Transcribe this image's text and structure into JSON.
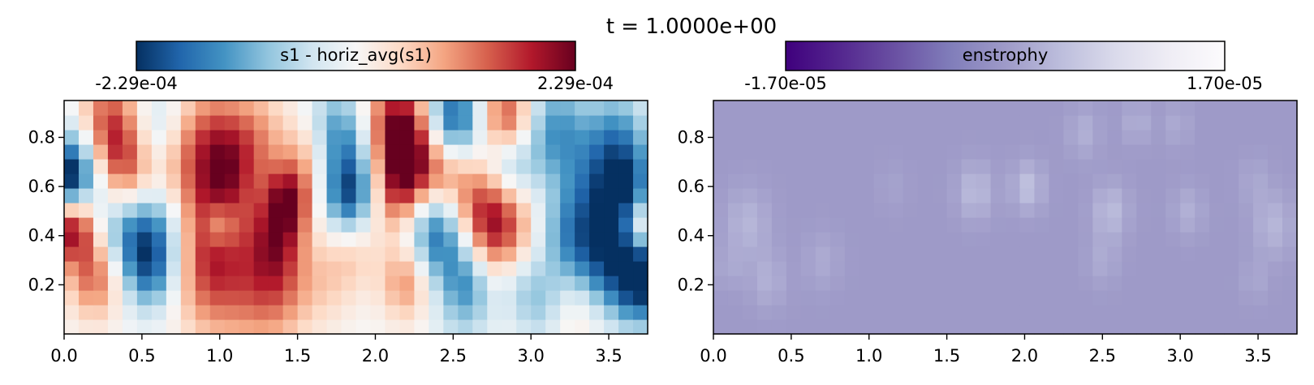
{
  "figure": {
    "suptitle": "t = 1.0000e+00"
  },
  "chart_data": [
    {
      "type": "heatmap",
      "title": "",
      "colorbar_label": "s1 - horiz_avg(s1)",
      "colormap": "RdBu_r",
      "colormap_stops": [
        "#053061",
        "#2166ac",
        "#4393c3",
        "#92c5de",
        "#d1e5f0",
        "#f7f7f7",
        "#fddbc7",
        "#f4a582",
        "#d6604d",
        "#b2182b",
        "#67001f"
      ],
      "vmin": -0.000229,
      "vmax": 0.000229,
      "colorbar_ticks": [
        "-2.29e-04",
        "2.29e-04"
      ],
      "xlim": [
        0,
        3.75
      ],
      "ylim": [
        0,
        0.95
      ],
      "xticks": [
        "0.0",
        "0.5",
        "1.0",
        "1.5",
        "2.0",
        "2.5",
        "3.0",
        "3.5"
      ],
      "yticks": [
        "0.2",
        "0.4",
        "0.6",
        "0.8"
      ],
      "grid": false,
      "nx": 40,
      "ny": 16,
      "blobs": [
        {
          "x": 0.28,
          "y": 0.84,
          "r": 0.14,
          "a": 0.75
        },
        {
          "x": 0.6,
          "y": 0.83,
          "r": 0.12,
          "a": -0.3
        },
        {
          "x": 0.95,
          "y": 0.82,
          "r": 0.15,
          "a": 0.45
        },
        {
          "x": 1.25,
          "y": 0.82,
          "r": 0.14,
          "a": 0.3
        },
        {
          "x": 1.75,
          "y": 0.85,
          "r": 0.12,
          "a": -0.45
        },
        {
          "x": 2.15,
          "y": 0.84,
          "r": 0.14,
          "a": 0.95
        },
        {
          "x": 2.5,
          "y": 0.86,
          "r": 0.13,
          "a": -0.95
        },
        {
          "x": 2.85,
          "y": 0.86,
          "r": 0.12,
          "a": 0.85
        },
        {
          "x": 3.15,
          "y": 0.83,
          "r": 0.15,
          "a": -0.6
        },
        {
          "x": 3.55,
          "y": 0.81,
          "r": 0.14,
          "a": -0.5
        },
        {
          "x": 0.08,
          "y": 0.68,
          "r": 0.14,
          "a": -0.75
        },
        {
          "x": 0.4,
          "y": 0.67,
          "r": 0.12,
          "a": 0.5
        },
        {
          "x": 0.75,
          "y": 0.7,
          "r": 0.14,
          "a": 0.3
        },
        {
          "x": 1.1,
          "y": 0.69,
          "r": 0.14,
          "a": 0.35
        },
        {
          "x": 1.55,
          "y": 0.75,
          "r": 0.1,
          "a": 0.2
        },
        {
          "x": 1.85,
          "y": 0.7,
          "r": 0.12,
          "a": -0.4
        },
        {
          "x": 2.25,
          "y": 0.7,
          "r": 0.12,
          "a": 0.4
        },
        {
          "x": 2.45,
          "y": 0.67,
          "r": 0.13,
          "a": 0.55
        },
        {
          "x": 2.85,
          "y": 0.7,
          "r": 0.12,
          "a": -0.75
        },
        {
          "x": 3.4,
          "y": 0.62,
          "r": 0.14,
          "a": -0.35
        },
        {
          "x": 0.0,
          "y": 0.62,
          "r": 0.09,
          "a": -0.6
        },
        {
          "x": 1.0,
          "y": 0.6,
          "r": 0.14,
          "a": 0.35
        },
        {
          "x": 1.45,
          "y": 0.55,
          "r": 0.11,
          "a": 0.85
        },
        {
          "x": 1.83,
          "y": 0.55,
          "r": 0.11,
          "a": -0.75
        },
        {
          "x": 2.15,
          "y": 0.58,
          "r": 0.12,
          "a": 0.6
        },
        {
          "x": 2.75,
          "y": 0.47,
          "r": 0.17,
          "a": 1.0
        },
        {
          "x": 3.62,
          "y": 0.6,
          "r": 0.13,
          "a": -0.65
        },
        {
          "x": 0.05,
          "y": 0.44,
          "r": 0.1,
          "a": 0.95
        },
        {
          "x": 0.35,
          "y": 0.4,
          "r": 0.12,
          "a": -0.3
        },
        {
          "x": 0.55,
          "y": 0.4,
          "r": 0.14,
          "a": -0.65
        },
        {
          "x": 0.95,
          "y": 0.45,
          "r": 0.14,
          "a": 0.35
        },
        {
          "x": 1.0,
          "y": 0.45,
          "r": 0.07,
          "a": -0.45
        },
        {
          "x": 1.35,
          "y": 0.4,
          "r": 0.12,
          "a": 0.4
        },
        {
          "x": 1.55,
          "y": 0.48,
          "r": 0.11,
          "a": -0.1
        },
        {
          "x": 1.85,
          "y": 0.35,
          "r": 0.12,
          "a": 0.25
        },
        {
          "x": 2.4,
          "y": 0.42,
          "r": 0.14,
          "a": -0.85
        },
        {
          "x": 3.2,
          "y": 0.42,
          "r": 0.14,
          "a": -0.35
        },
        {
          "x": 3.45,
          "y": 0.33,
          "r": 0.17,
          "a": -0.85
        },
        {
          "x": 3.72,
          "y": 0.23,
          "r": 0.13,
          "a": -1.0
        },
        {
          "x": 3.72,
          "y": 0.44,
          "r": 0.08,
          "a": 0.6
        },
        {
          "x": 0.2,
          "y": 0.24,
          "r": 0.12,
          "a": 0.6
        },
        {
          "x": 0.55,
          "y": 0.25,
          "r": 0.12,
          "a": -0.5
        },
        {
          "x": 0.95,
          "y": 0.24,
          "r": 0.17,
          "a": 0.6
        },
        {
          "x": 1.35,
          "y": 0.23,
          "r": 0.17,
          "a": 0.6
        },
        {
          "x": 1.7,
          "y": 0.2,
          "r": 0.12,
          "a": 0.15
        },
        {
          "x": 2.2,
          "y": 0.22,
          "r": 0.11,
          "a": 0.5
        },
        {
          "x": 2.6,
          "y": 0.22,
          "r": 0.12,
          "a": -0.6
        },
        {
          "x": 2.9,
          "y": 0.22,
          "r": 0.1,
          "a": -0.2
        },
        {
          "x": 3.05,
          "y": 0.13,
          "r": 0.12,
          "a": -0.35
        },
        {
          "x": 3.3,
          "y": 0.12,
          "r": 0.13,
          "a": 0.25
        },
        {
          "x": 1.2,
          "y": 0.06,
          "r": 0.18,
          "a": 0.1
        },
        {
          "x": 2.55,
          "y": 0.05,
          "r": 0.14,
          "a": -0.15
        }
      ]
    },
    {
      "type": "heatmap",
      "title": "",
      "colorbar_label": "enstrophy",
      "colormap": "Purples_r",
      "colormap_stops": [
        "#3f007d",
        "#54278f",
        "#6a51a3",
        "#807dba",
        "#9e9ac8",
        "#bcbddc",
        "#dadaeb",
        "#efedf5",
        "#fcfbfd"
      ],
      "vmin": -1.7e-05,
      "vmax": 1.7e-05,
      "colorbar_ticks": [
        "-1.70e-05",
        "1.70e-05"
      ],
      "xlim": [
        0,
        3.75
      ],
      "ylim": [
        0,
        0.95
      ],
      "xticks": [
        "0.0",
        "0.5",
        "1.0",
        "1.5",
        "2.0",
        "2.5",
        "3.0",
        "3.5"
      ],
      "yticks": [
        "0.2",
        "0.4",
        "0.6",
        "0.8"
      ],
      "grid": false,
      "nx": 40,
      "ny": 16,
      "base_level": 0.5,
      "blobs": [
        {
          "x": 0.22,
          "y": 0.45,
          "r": 0.1,
          "a": 0.1
        },
        {
          "x": 0.35,
          "y": 0.22,
          "r": 0.08,
          "a": 0.08
        },
        {
          "x": 0.7,
          "y": 0.3,
          "r": 0.08,
          "a": 0.06
        },
        {
          "x": 1.68,
          "y": 0.58,
          "r": 0.08,
          "a": 0.12
        },
        {
          "x": 2.02,
          "y": 0.6,
          "r": 0.07,
          "a": 0.14
        },
        {
          "x": 2.55,
          "y": 0.5,
          "r": 0.08,
          "a": 0.12
        },
        {
          "x": 2.5,
          "y": 0.3,
          "r": 0.07,
          "a": 0.06
        },
        {
          "x": 2.38,
          "y": 0.82,
          "r": 0.07,
          "a": 0.08
        },
        {
          "x": 2.72,
          "y": 0.86,
          "r": 0.06,
          "a": 0.08
        },
        {
          "x": 2.98,
          "y": 0.85,
          "r": 0.06,
          "a": 0.06
        },
        {
          "x": 3.05,
          "y": 0.5,
          "r": 0.07,
          "a": 0.08
        },
        {
          "x": 3.6,
          "y": 0.44,
          "r": 0.09,
          "a": 0.1
        },
        {
          "x": 3.48,
          "y": 0.62,
          "r": 0.07,
          "a": 0.05
        },
        {
          "x": 3.48,
          "y": 0.22,
          "r": 0.06,
          "a": 0.05
        },
        {
          "x": 1.15,
          "y": 0.6,
          "r": 0.07,
          "a": 0.03
        },
        {
          "x": 0.1,
          "y": 0.27,
          "r": 0.06,
          "a": 0.05
        }
      ]
    }
  ]
}
